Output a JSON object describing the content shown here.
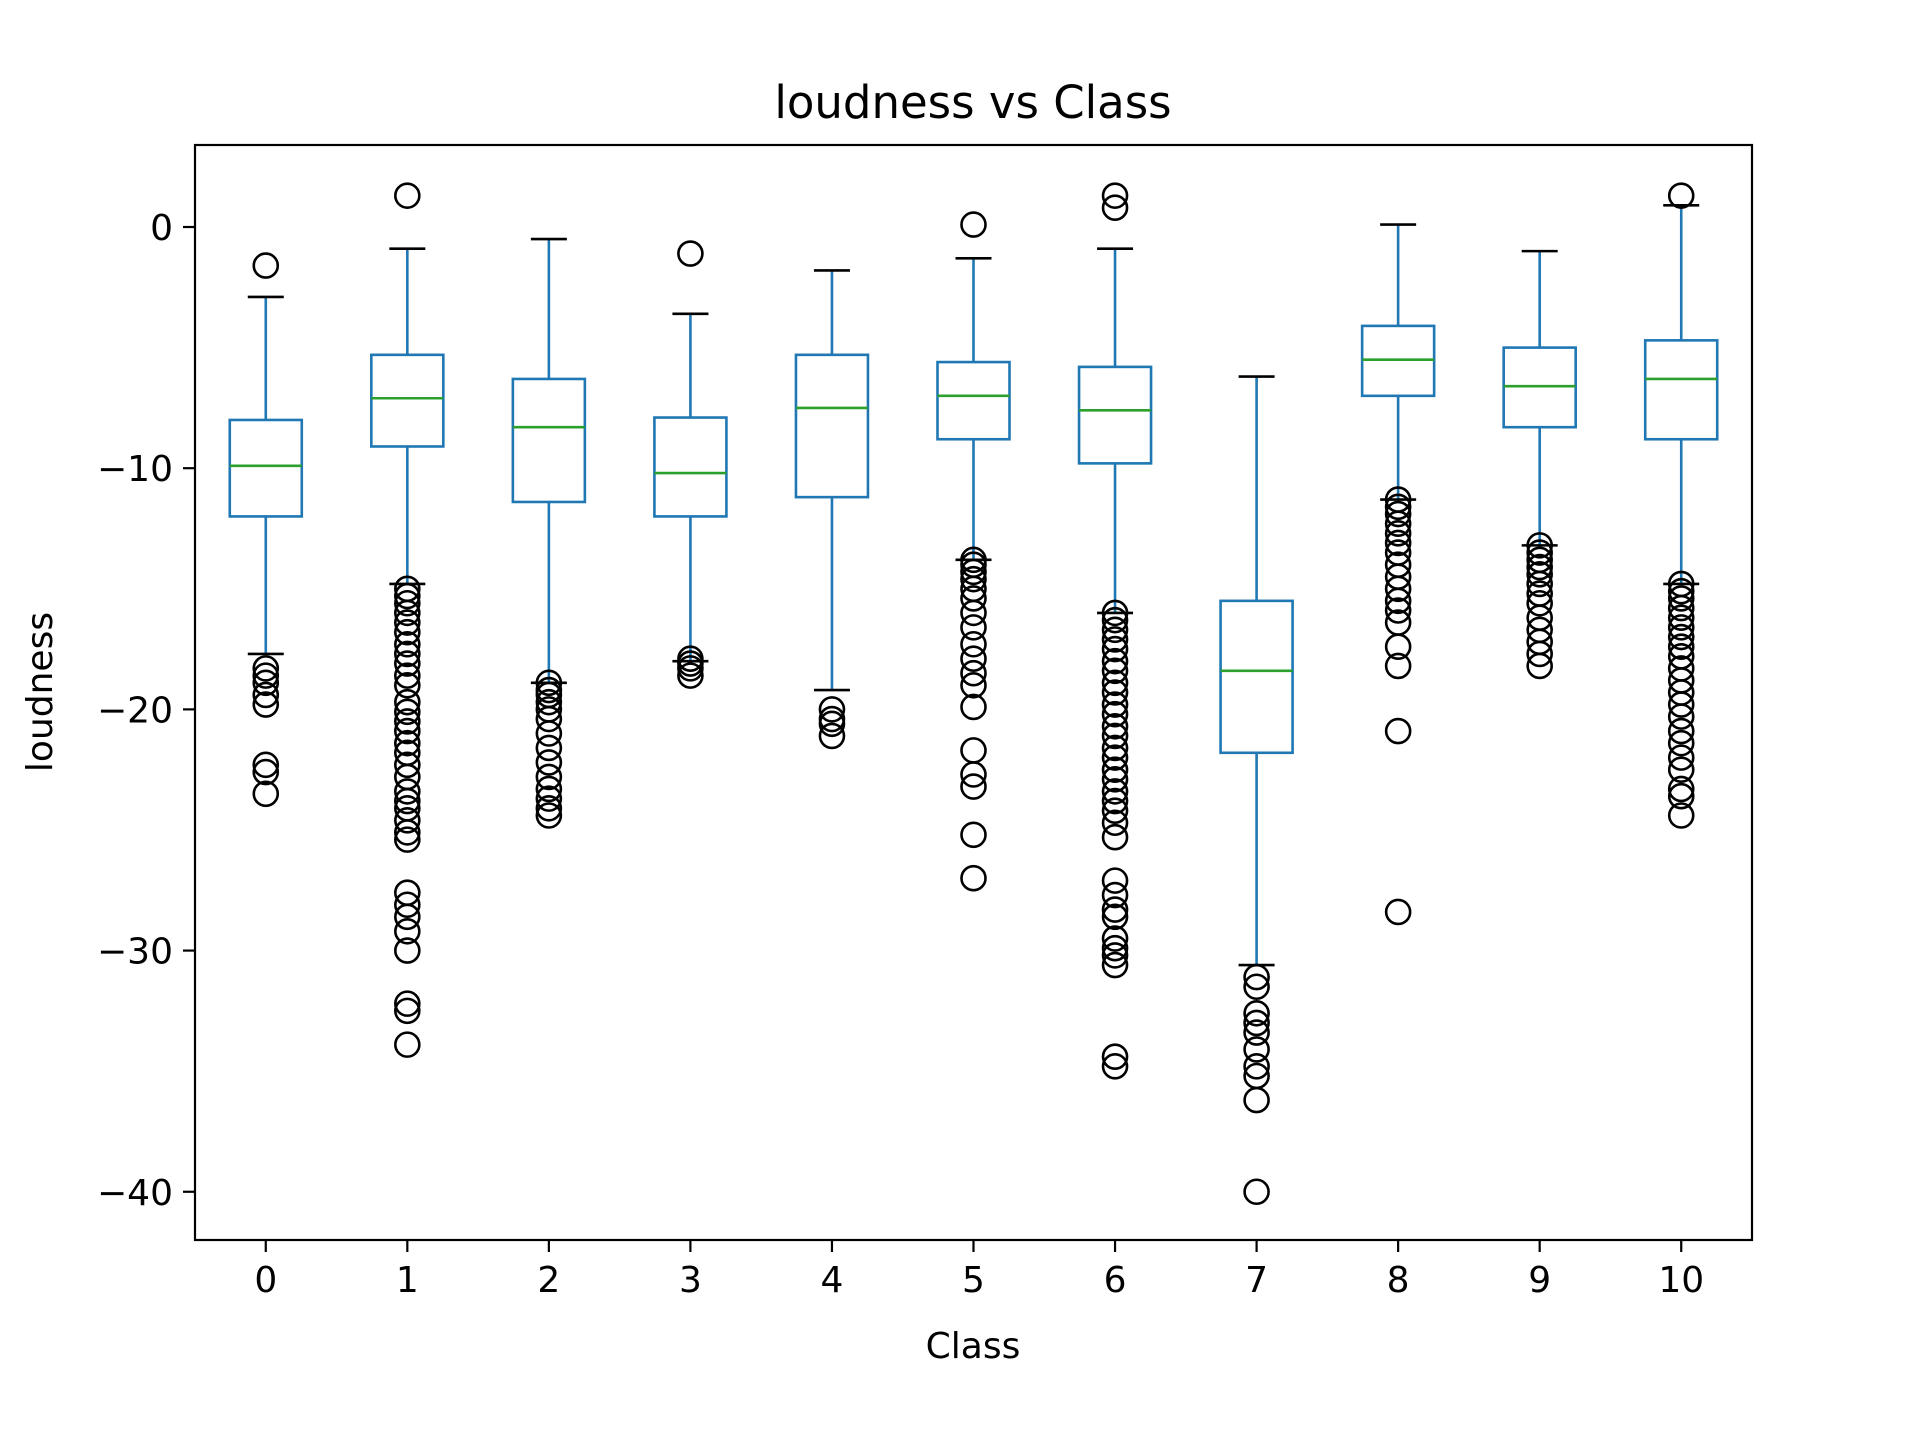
{
  "chart_data": {
    "type": "box",
    "title": "loudness vs Class",
    "xlabel": "Class",
    "ylabel": "loudness",
    "categories": [
      "0",
      "1",
      "2",
      "3",
      "4",
      "5",
      "6",
      "7",
      "8",
      "9",
      "10"
    ],
    "ylim": [
      -42,
      3.4
    ],
    "yticks": [
      0,
      -10,
      -20,
      -30,
      -40
    ],
    "ytick_labels": [
      "0",
      "−10",
      "−20",
      "−30",
      "−40"
    ],
    "grid": false,
    "legend": "none",
    "colors": {
      "box": "#1f77b4",
      "median": "#2ca02c",
      "whisker": "#1f77b4",
      "cap": "#000000",
      "flier": "#000000"
    },
    "boxes": [
      {
        "category": "0",
        "whislo": -17.7,
        "q1": -12.0,
        "med": -9.9,
        "q3": -8.0,
        "whishi": -2.9,
        "fliers": [
          -1.6,
          -18.3,
          -18.6,
          -18.9,
          -19.4,
          -19.8,
          -22.3,
          -22.6,
          -23.5
        ]
      },
      {
        "category": "1",
        "whislo": -14.8,
        "q1": -9.1,
        "med": -7.1,
        "q3": -5.3,
        "whishi": -0.9,
        "fliers": [
          1.3,
          -15.0,
          -15.3,
          -15.6,
          -16.0,
          -16.4,
          -16.8,
          -17.3,
          -17.7,
          -18.1,
          -18.6,
          -19.0,
          -19.7,
          -20.1,
          -20.5,
          -20.9,
          -21.4,
          -21.8,
          -22.3,
          -22.8,
          -23.4,
          -23.8,
          -24.1,
          -24.6,
          -25.1,
          -25.4,
          -27.6,
          -28.1,
          -28.6,
          -29.2,
          -30.0,
          -32.2,
          -32.5,
          -33.9
        ]
      },
      {
        "category": "2",
        "whislo": -18.9,
        "q1": -11.4,
        "med": -8.3,
        "q3": -6.3,
        "whishi": -0.5,
        "fliers": [
          -18.9,
          -19.2,
          -19.4,
          -19.7,
          -20.0,
          -20.4,
          -21.0,
          -21.6,
          -22.2,
          -22.8,
          -23.3,
          -23.7,
          -24.1,
          -24.4
        ]
      },
      {
        "category": "3",
        "whislo": -18.0,
        "q1": -12.0,
        "med": -10.2,
        "q3": -7.9,
        "whishi": -3.6,
        "fliers": [
          -1.1,
          -17.9,
          -18.1,
          -18.3,
          -18.6
        ]
      },
      {
        "category": "4",
        "whislo": -19.2,
        "q1": -11.2,
        "med": -7.5,
        "q3": -5.3,
        "whishi": -1.8,
        "fliers": [
          -20.0,
          -20.4,
          -20.6,
          -21.1
        ]
      },
      {
        "category": "5",
        "whislo": -13.8,
        "q1": -8.8,
        "med": -7.0,
        "q3": -5.6,
        "whishi": -1.3,
        "fliers": [
          0.1,
          -13.8,
          -14.0,
          -14.3,
          -14.6,
          -15.0,
          -15.4,
          -16.0,
          -16.6,
          -17.3,
          -17.9,
          -18.5,
          -19.0,
          -19.9,
          -21.7,
          -22.7,
          -23.2,
          -25.2,
          -27.0
        ]
      },
      {
        "category": "6",
        "whislo": -16.0,
        "q1": -9.8,
        "med": -7.6,
        "q3": -5.8,
        "whishi": -0.9,
        "fliers": [
          1.3,
          0.8,
          -16.0,
          -16.3,
          -16.7,
          -17.1,
          -17.5,
          -18.0,
          -18.4,
          -18.9,
          -19.3,
          -19.8,
          -20.2,
          -20.7,
          -21.1,
          -21.6,
          -22.0,
          -22.5,
          -22.9,
          -23.4,
          -23.8,
          -24.2,
          -24.7,
          -25.3,
          -27.1,
          -27.7,
          -28.3,
          -28.6,
          -29.5,
          -29.9,
          -30.2,
          -30.6,
          -34.4,
          -34.8
        ]
      },
      {
        "category": "7",
        "whislo": -30.6,
        "q1": -21.8,
        "med": -18.4,
        "q3": -15.5,
        "whishi": -6.2,
        "fliers": [
          -31.1,
          -31.5,
          -32.6,
          -33.0,
          -33.4,
          -34.1,
          -34.8,
          -35.2,
          -36.2,
          -40.0
        ]
      },
      {
        "category": "8",
        "whislo": -11.3,
        "q1": -7.0,
        "med": -5.5,
        "q3": -4.1,
        "whishi": 0.1,
        "fliers": [
          -11.3,
          -11.6,
          -11.9,
          -12.3,
          -12.7,
          -13.1,
          -13.5,
          -14.0,
          -14.5,
          -15.0,
          -15.5,
          -15.9,
          -16.4,
          -17.4,
          -18.2,
          -20.9,
          -28.4
        ]
      },
      {
        "category": "9",
        "whislo": -13.2,
        "q1": -8.3,
        "med": -6.6,
        "q3": -5.0,
        "whishi": -1.0,
        "fliers": [
          -13.2,
          -13.5,
          -13.8,
          -14.1,
          -14.4,
          -14.8,
          -15.2,
          -15.6,
          -16.2,
          -16.7,
          -17.2,
          -17.7,
          -18.2
        ]
      },
      {
        "category": "10",
        "whislo": -14.8,
        "q1": -8.8,
        "med": -6.3,
        "q3": -4.7,
        "whishi": 0.9,
        "fliers": [
          1.3,
          -14.8,
          -15.1,
          -15.4,
          -15.8,
          -16.2,
          -16.6,
          -17.0,
          -17.4,
          -17.8,
          -18.3,
          -18.8,
          -19.3,
          -19.8,
          -20.3,
          -20.9,
          -21.4,
          -22.0,
          -22.5,
          -23.3,
          -23.6,
          -24.4
        ]
      }
    ]
  }
}
